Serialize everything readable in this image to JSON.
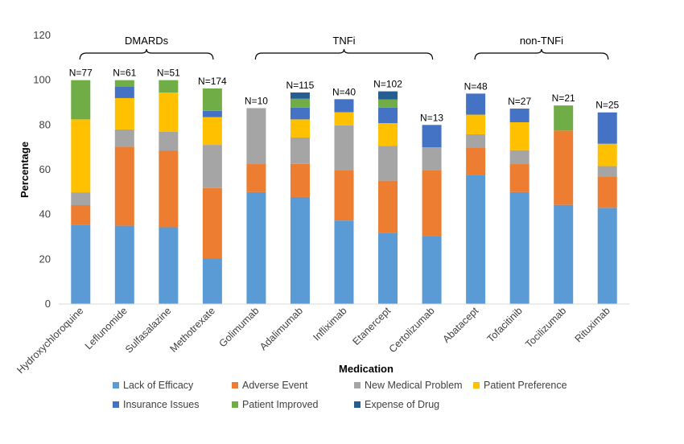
{
  "chart_data": {
    "type": "bar",
    "stacked": true,
    "xlabel": "Medication",
    "ylabel": "Percentage",
    "ylim": [
      0,
      120
    ],
    "yticks": [
      0,
      20,
      40,
      60,
      80,
      100,
      120
    ],
    "grid": false,
    "legend_position": "bottom",
    "categories": [
      "Hydroxychloroquine",
      "Leflunomide",
      "Sulfasalazine",
      "Methotrexate",
      "Golimumab",
      "Adalimumab",
      "Infliximab",
      "Etanercept",
      "Certolizumab",
      "Abatacept",
      "Tofacitinib",
      "Tocilizumab",
      "Rituximab"
    ],
    "n_labels": [
      "N=77",
      "N=61",
      "N=51",
      "N=174",
      "N=10",
      "N=115",
      "N=40",
      "N=102",
      "N=13",
      "N=48",
      "N=27",
      "N=21",
      "N=25"
    ],
    "groups": [
      {
        "label": "DMARDs",
        "first": 0,
        "last": 3
      },
      {
        "label": "TNFi",
        "first": 4,
        "last": 8
      },
      {
        "label": "non-TNFi",
        "first": 9,
        "last": 12
      }
    ],
    "series": [
      {
        "name": "Lack of Efficacy",
        "color": "#5B9BD5",
        "values": [
          35.5,
          35,
          34.3,
          20.3,
          50,
          47.8,
          37.3,
          31.9,
          30.5,
          57.5,
          50,
          44.3,
          43
        ]
      },
      {
        "name": "Adverse Event",
        "color": "#ED7D31",
        "values": [
          8.7,
          35.3,
          34.3,
          31.5,
          12.5,
          14.8,
          22.5,
          23.2,
          29.4,
          12.5,
          12.5,
          33.2,
          14
        ]
      },
      {
        "name": "New Medical Problem",
        "color": "#A5A5A5",
        "values": [
          5.7,
          7.7,
          8.3,
          19.3,
          25,
          11.8,
          20,
          15.6,
          10.1,
          5.8,
          6.2,
          0,
          4.6
        ]
      },
      {
        "name": "Patient Preference",
        "color": "#FFC000",
        "values": [
          32.6,
          14,
          17.6,
          12.4,
          0,
          8.1,
          5.9,
          10.1,
          0,
          8.8,
          12.5,
          0,
          10
        ]
      },
      {
        "name": "Insurance Issues",
        "color": "#4472C4",
        "values": [
          0,
          5,
          0,
          2.8,
          0,
          5.2,
          5.8,
          6.9,
          10,
          9.4,
          6.1,
          0,
          14
        ]
      },
      {
        "name": "Patient Improved",
        "color": "#70AD47",
        "values": [
          17.5,
          3,
          5.5,
          10,
          0,
          4,
          0,
          3.7,
          0,
          0,
          0,
          11.2,
          0
        ]
      },
      {
        "name": "Expense of Drug",
        "color": "#255E91",
        "values": [
          0,
          0,
          0,
          0,
          0,
          2.8,
          0,
          3.6,
          0,
          0,
          0,
          0,
          0
        ]
      }
    ]
  }
}
